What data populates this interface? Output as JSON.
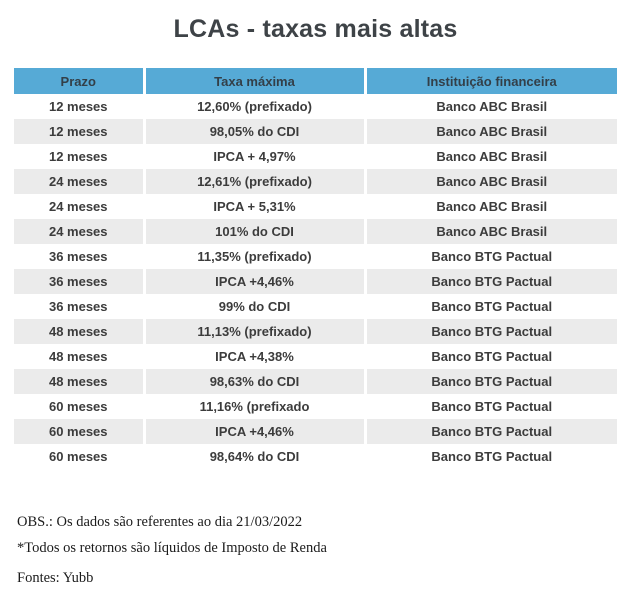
{
  "title": "LCAs - taxas mais altas",
  "colors": {
    "header_background": "#56aad6",
    "header_text": "#333f48",
    "alt_row_background": "#ebebeb",
    "body_text": "#3c3c3c",
    "title_text": "#3e4347",
    "page_background": "#ffffff"
  },
  "table": {
    "headers": [
      "Prazo",
      "Taxa máxima",
      "Instituição financeira"
    ],
    "rows": [
      {
        "prazo": "12 meses",
        "taxa": "12,60% (prefixado)",
        "instituicao": "Banco ABC Brasil"
      },
      {
        "prazo": "12 meses",
        "taxa": "98,05% do CDI",
        "instituicao": "Banco ABC Brasil"
      },
      {
        "prazo": "12 meses",
        "taxa": "IPCA + 4,97%",
        "instituicao": "Banco ABC Brasil"
      },
      {
        "prazo": "24 meses",
        "taxa": "12,61% (prefixado)",
        "instituicao": "Banco ABC Brasil"
      },
      {
        "prazo": "24 meses",
        "taxa": "IPCA + 5,31%",
        "instituicao": "Banco ABC Brasil"
      },
      {
        "prazo": "24 meses",
        "taxa": "101% do CDI",
        "instituicao": "Banco ABC Brasil"
      },
      {
        "prazo": "36 meses",
        "taxa": "11,35% (prefixado)",
        "instituicao": "Banco BTG Pactual"
      },
      {
        "prazo": "36 meses",
        "taxa": "IPCA +4,46%",
        "instituicao": "Banco BTG Pactual"
      },
      {
        "prazo": "36 meses",
        "taxa": "99% do CDI",
        "instituicao": "Banco BTG Pactual"
      },
      {
        "prazo": "48 meses",
        "taxa": "11,13% (prefixado)",
        "instituicao": "Banco BTG Pactual"
      },
      {
        "prazo": "48 meses",
        "taxa": "IPCA +4,38%",
        "instituicao": "Banco BTG Pactual"
      },
      {
        "prazo": "48 meses",
        "taxa": "98,63% do CDI",
        "instituicao": "Banco BTG Pactual"
      },
      {
        "prazo": "60 meses",
        "taxa": "11,16% (prefixado",
        "instituicao": "Banco BTG Pactual"
      },
      {
        "prazo": "60 meses",
        "taxa": "IPCA +4,46%",
        "instituicao": "Banco BTG Pactual"
      },
      {
        "prazo": "60 meses",
        "taxa": "98,64% do CDI",
        "instituicao": "Banco BTG Pactual"
      }
    ]
  },
  "footer": {
    "note1": "OBS.: Os dados são referentes ao dia 21/03/2022",
    "note2": "*Todos os retornos são líquidos de Imposto de Renda",
    "source": "Fontes: Yubb"
  },
  "chart_data": {
    "type": "table",
    "title": "LCAs - taxas mais altas",
    "columns": [
      "Prazo",
      "Taxa máxima",
      "Instituição financeira"
    ],
    "rows": [
      [
        "12 meses",
        "12,60% (prefixado)",
        "Banco ABC Brasil"
      ],
      [
        "12 meses",
        "98,05% do CDI",
        "Banco ABC Brasil"
      ],
      [
        "12 meses",
        "IPCA + 4,97%",
        "Banco ABC Brasil"
      ],
      [
        "24 meses",
        "12,61% (prefixado)",
        "Banco ABC Brasil"
      ],
      [
        "24 meses",
        "IPCA + 5,31%",
        "Banco ABC Brasil"
      ],
      [
        "24 meses",
        "101% do CDI",
        "Banco ABC Brasil"
      ],
      [
        "36 meses",
        "11,35% (prefixado)",
        "Banco BTG Pactual"
      ],
      [
        "36 meses",
        "IPCA +4,46%",
        "Banco BTG Pactual"
      ],
      [
        "36 meses",
        "99% do CDI",
        "Banco BTG Pactual"
      ],
      [
        "48 meses",
        "11,13% (prefixado)",
        "Banco BTG Pactual"
      ],
      [
        "48 meses",
        "IPCA +4,38%",
        "Banco BTG Pactual"
      ],
      [
        "48 meses",
        "98,63% do CDI",
        "Banco BTG Pactual"
      ],
      [
        "60 meses",
        "11,16% (prefixado",
        "Banco BTG Pactual"
      ],
      [
        "60 meses",
        "IPCA +4,46%",
        "Banco BTG Pactual"
      ],
      [
        "60 meses",
        "98,64% do CDI",
        "Banco BTG Pactual"
      ]
    ],
    "notes": [
      "OBS.: Os dados são referentes ao dia 21/03/2022",
      "*Todos os retornos são líquidos de Imposto de Renda",
      "Fontes: Yubb"
    ]
  }
}
